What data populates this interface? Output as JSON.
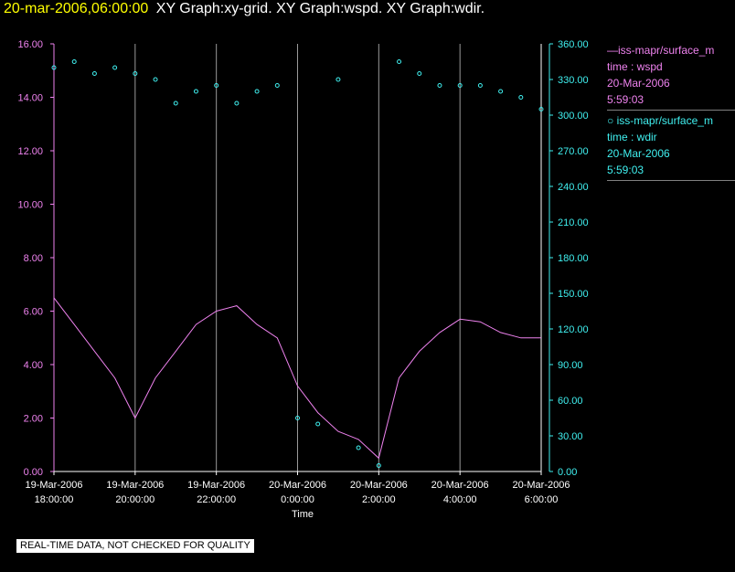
{
  "header": {
    "date": "20-mar-2006,06:00:00",
    "graph_titles": "XY Graph:xy-grid.  XY Graph:wspd.  XY Graph:wdir."
  },
  "legend": {
    "wspd": {
      "line1": "iss-mapr/surface_m",
      "line2": "time : wspd",
      "line3": "20-Mar-2006",
      "line4": "5:59:03"
    },
    "wdir": {
      "line1": "iss-mapr/surface_m",
      "line2": "time : wdir",
      "line3": "20-Mar-2006",
      "line4": "5:59:03"
    }
  },
  "quality_note": "REAL-TIME DATA, NOT CHECKED FOR QUALITY",
  "colors": {
    "wspd": "#ee82ee",
    "wdir": "#40f0f0",
    "grid": "#9a9a9a",
    "date": "#ffff00",
    "background": "#000000"
  },
  "chart_data": {
    "type": "line",
    "xlabel": "Time",
    "x_ticks": [
      [
        "19-Mar-2006",
        "18:00:00"
      ],
      [
        "19-Mar-2006",
        "20:00:00"
      ],
      [
        "19-Mar-2006",
        "22:00:00"
      ],
      [
        "20-Mar-2006",
        "0:00:00"
      ],
      [
        "20-Mar-2006",
        "2:00:00"
      ],
      [
        "20-Mar-2006",
        "4:00:00"
      ],
      [
        "20-Mar-2006",
        "6:00:00"
      ]
    ],
    "xlim_hours": [
      18,
      30
    ],
    "y_left": {
      "ylim": [
        0,
        16
      ],
      "ticks": [
        "0.00",
        "2.00",
        "4.00",
        "6.00",
        "8.00",
        "10.00",
        "12.00",
        "14.00",
        "16.00"
      ]
    },
    "y_right": {
      "ylim": [
        0,
        360
      ],
      "ticks": [
        "0.00",
        "30.00",
        "60.00",
        "90.00",
        "120.00",
        "150.00",
        "180.00",
        "210.00",
        "240.00",
        "270.00",
        "300.00",
        "330.00",
        "360.00"
      ]
    },
    "grid": "vertical",
    "series": [
      {
        "key": "wspd",
        "style": "line",
        "axis": "left",
        "x": [
          18.0,
          18.5,
          19.0,
          19.5,
          20.0,
          20.5,
          21.0,
          21.5,
          22.0,
          22.5,
          23.0,
          23.5,
          24.0,
          24.5,
          25.0,
          25.5,
          26.0,
          26.5,
          27.0,
          27.5,
          28.0,
          28.5,
          29.0,
          29.5,
          30.0
        ],
        "y": [
          6.5,
          5.5,
          4.5,
          3.5,
          2.0,
          3.5,
          4.5,
          5.5,
          6.0,
          6.2,
          5.5,
          5.0,
          3.2,
          2.2,
          1.5,
          1.2,
          0.5,
          3.5,
          4.5,
          5.2,
          5.7,
          5.6,
          5.2,
          5.0,
          5.0
        ]
      },
      {
        "key": "wdir",
        "style": "scatter",
        "axis": "right",
        "x": [
          18.0,
          18.5,
          19.0,
          19.5,
          20.0,
          20.5,
          21.0,
          21.5,
          22.0,
          22.5,
          23.0,
          23.5,
          24.0,
          24.5,
          25.0,
          25.5,
          26.0,
          26.5,
          27.0,
          27.5,
          28.0,
          28.5,
          29.0,
          29.5,
          30.0
        ],
        "y": [
          340,
          345,
          335,
          340,
          335,
          330,
          310,
          320,
          325,
          310,
          320,
          325,
          45,
          40,
          330,
          20,
          5,
          345,
          335,
          325,
          325,
          325,
          320,
          315,
          305
        ]
      }
    ]
  }
}
